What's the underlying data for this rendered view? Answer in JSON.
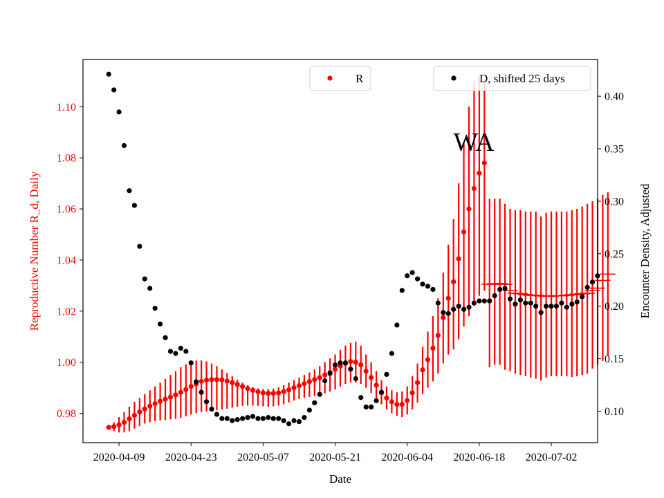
{
  "chart_data": {
    "type": "scatter",
    "annotation": "WA",
    "xlabel": "Date",
    "ylabel_left": "Reproductive Number R_d, Daily",
    "ylabel_right": "Encounter Density, Adjusted",
    "xlim": [
      "2020-04-02",
      "2020-07-11"
    ],
    "ylim_left": [
      0.9685,
      1.1185
    ],
    "ylim_right": [
      0.07,
      0.435
    ],
    "x_ticks": [
      "2020-04-09",
      "2020-04-23",
      "2020-05-07",
      "2020-05-21",
      "2020-06-04",
      "2020-06-18",
      "2020-07-02"
    ],
    "y_ticks_left": [
      "0.98",
      "1.00",
      "1.02",
      "1.04",
      "1.06",
      "1.08",
      "1.10"
    ],
    "y_ticks_right": [
      "0.10",
      "0.15",
      "0.20",
      "0.25",
      "0.30",
      "0.35",
      "0.40"
    ],
    "grid": false,
    "colors": {
      "R": "#ff0000",
      "D": "#000000",
      "left_axis_text": "#ff0000"
    },
    "series": [
      {
        "name": "R",
        "axis": "left",
        "start_date": "2020-04-07",
        "step_days": 1,
        "values": [
          0.9745,
          0.9748,
          0.9755,
          0.9765,
          0.9778,
          0.9792,
          0.9805,
          0.9817,
          0.9828,
          0.9838,
          0.9847,
          0.9855,
          0.9863,
          0.9872,
          0.9882,
          0.9893,
          0.9905,
          0.9915,
          0.9925,
          0.993,
          0.9932,
          0.9932,
          0.9931,
          0.9926,
          0.992,
          0.9913,
          0.9905,
          0.9897,
          0.989,
          0.9884,
          0.988,
          0.9878,
          0.9878,
          0.988,
          0.9885,
          0.9892,
          0.99,
          0.9908,
          0.9916,
          0.9924,
          0.9932,
          0.994,
          0.995,
          0.996,
          0.9972,
          0.9985,
          0.9995,
          1.0003,
          1.0,
          0.999,
          0.9965,
          0.994,
          0.991,
          0.988,
          0.986,
          0.9845,
          0.9835,
          0.9835,
          0.985,
          0.988,
          0.992,
          0.997,
          1.001,
          1.0055,
          1.0105,
          1.0175,
          1.025,
          1.0315,
          1.0405,
          1.051,
          1.06,
          1.068,
          1.074,
          1.078
        ],
        "err_low": [
          0.9735,
          0.973,
          0.9725,
          0.9725,
          0.973,
          0.974,
          0.975,
          0.976,
          0.9765,
          0.977,
          0.9772,
          0.9774,
          0.9776,
          0.9778,
          0.9782,
          0.9788,
          0.9795,
          0.98,
          0.9805,
          0.9808,
          0.981,
          0.9812,
          0.9815,
          0.9818,
          0.9822,
          0.9826,
          0.9829,
          0.983,
          0.983,
          0.9829,
          0.9827,
          0.9826,
          0.9827,
          0.983,
          0.9835,
          0.9842,
          0.985,
          0.9856,
          0.986,
          0.9864,
          0.9868,
          0.9872,
          0.9878,
          0.9885,
          0.9893,
          0.9905,
          0.9915,
          0.992,
          0.992,
          0.9915,
          0.99,
          0.988,
          0.9858,
          0.9835,
          0.9815,
          0.98,
          0.979,
          0.9785,
          0.9795,
          0.9815,
          0.9842,
          0.9875,
          0.99,
          0.9925,
          0.9955,
          0.9995,
          1.003,
          1.005,
          1.009,
          1.014,
          1.018,
          1.022,
          1.026,
          1.028
        ],
        "err_high": [
          0.9755,
          0.9765,
          0.9785,
          0.9805,
          0.9826,
          0.9845,
          0.986,
          0.9875,
          0.989,
          0.9905,
          0.992,
          0.9935,
          0.995,
          0.9965,
          0.998,
          0.9992,
          1.0002,
          1.0006,
          1.0007,
          1.0003,
          0.9995,
          0.9985,
          0.9972,
          0.9958,
          0.9945,
          0.9932,
          0.992,
          0.991,
          0.9902,
          0.9897,
          0.9895,
          0.9895,
          0.9897,
          0.9902,
          0.991,
          0.992,
          0.993,
          0.994,
          0.995,
          0.996,
          0.9972,
          0.9985,
          1.0,
          1.0015,
          1.003,
          1.0048,
          1.0065,
          1.0075,
          1.008,
          1.0065,
          1.003,
          1.0,
          0.9965,
          0.993,
          0.9905,
          0.989,
          0.9882,
          0.9885,
          0.9905,
          0.9945,
          0.9995,
          1.006,
          1.012,
          1.018,
          1.025,
          1.035,
          1.046,
          1.056,
          1.07,
          1.086,
          1.1,
          1.11,
          1.112,
          1.11
        ]
      },
      {
        "name": "R",
        "axis": "left",
        "style": "flat",
        "start_date": "2020-06-20",
        "step_days": 1,
        "values": [
          1.0305,
          1.0307,
          1.0308,
          1.0305,
          1.028,
          1.027,
          1.0268,
          1.0265,
          1.0262,
          1.0262,
          1.026,
          1.0258,
          1.0258,
          1.026,
          1.026,
          1.0262,
          1.0264,
          1.0266,
          1.0268,
          1.027,
          1.028,
          1.029,
          1.032,
          1.0345
        ],
        "err_low": [
          0.998,
          0.999,
          0.999,
          0.997,
          0.9965,
          0.9955,
          0.995,
          0.9945,
          0.994,
          0.9935,
          0.9928,
          0.994,
          0.9945,
          0.9945,
          0.9945,
          0.9945,
          0.9942,
          0.9945,
          0.995,
          0.9955,
          0.9975,
          0.999,
          1.0005,
          1.0025
        ],
        "err_high": [
          1.064,
          1.064,
          1.064,
          1.062,
          1.06,
          1.0595,
          1.0595,
          1.059,
          1.059,
          1.059,
          1.057,
          1.0585,
          1.059,
          1.059,
          1.059,
          1.059,
          1.0595,
          1.06,
          1.061,
          1.062,
          1.063,
          1.064,
          1.0655,
          1.0665
        ]
      },
      {
        "name": "D, shifted 25 days",
        "axis": "right",
        "start_date": "2020-04-07",
        "step_days": 1,
        "values": [
          0.421,
          0.406,
          0.385,
          0.353,
          0.31,
          0.296,
          0.257,
          0.226,
          0.217,
          0.198,
          0.183,
          0.17,
          0.157,
          0.155,
          0.16,
          0.157,
          0.146,
          0.128,
          0.118,
          0.109,
          0.102,
          0.097,
          0.093,
          0.093,
          0.091,
          0.092,
          0.093,
          0.094,
          0.095,
          0.093,
          0.093,
          0.094,
          0.093,
          0.093,
          0.091,
          0.088,
          0.091,
          0.09,
          0.094,
          0.101,
          0.108,
          0.116,
          0.129,
          0.136,
          0.144,
          0.146,
          0.146,
          0.14,
          0.131,
          0.113,
          0.104,
          0.104,
          0.11,
          0.118,
          0.135,
          0.155,
          0.182,
          0.215,
          0.229,
          0.232,
          0.226,
          0.221,
          0.219,
          0.216,
          0.203,
          0.194,
          0.193,
          0.197,
          0.2,
          0.197,
          0.199,
          0.203,
          0.205,
          0.205,
          0.205,
          0.21,
          0.216,
          0.217,
          0.207,
          0.202,
          0.206,
          0.203,
          0.203,
          0.2,
          0.194,
          0.2,
          0.2,
          0.2,
          0.203,
          0.199,
          0.202,
          0.204,
          0.209,
          0.218,
          0.223,
          0.229
        ]
      }
    ],
    "legends": [
      {
        "label": "R",
        "placement": "top-center"
      },
      {
        "label": "D, shifted 25 days",
        "placement": "top-right"
      }
    ]
  }
}
